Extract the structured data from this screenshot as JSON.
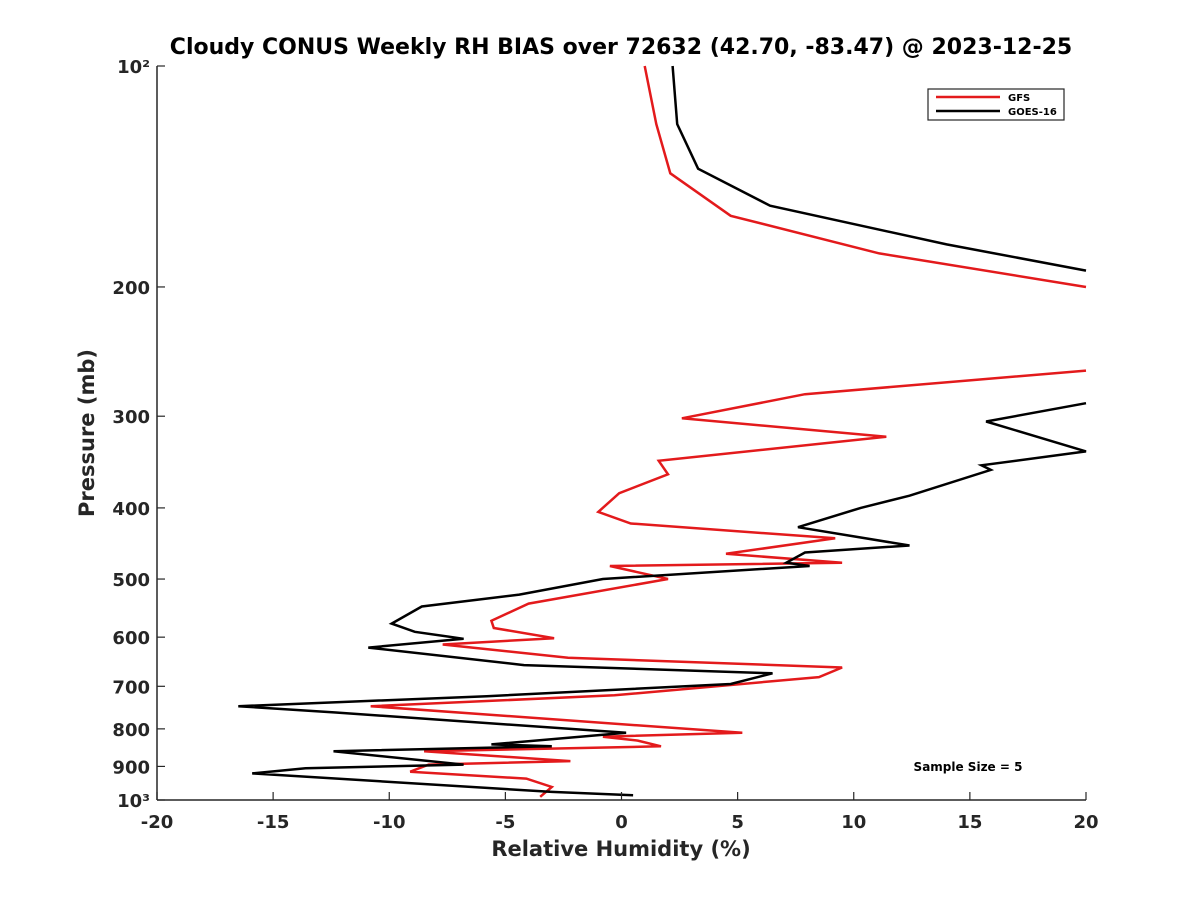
{
  "chart_data": {
    "type": "line",
    "title": "Cloudy CONUS Weekly RH BIAS over 72632 (42.70, -83.47) @ 2023-12-25",
    "xlabel": "Relative Humidity (%)",
    "ylabel": "Pressure (mb)",
    "xlim": [
      -20,
      20
    ],
    "ylim": [
      100,
      1000
    ],
    "y_scale": "log",
    "y_reversed": true,
    "x_ticks": [
      -20,
      -15,
      -10,
      -5,
      0,
      5,
      10,
      15,
      20
    ],
    "x_tick_labels": [
      "-20",
      "-15",
      "-10",
      "-5",
      "0",
      "5",
      "10",
      "15",
      "20"
    ],
    "y_ticks": [
      100,
      200,
      300,
      400,
      500,
      600,
      700,
      800,
      900,
      1000
    ],
    "y_tick_labels": [
      "10²",
      "200",
      "300",
      "400",
      "500",
      "600",
      "700",
      "800",
      "900",
      "10³"
    ],
    "grid": false,
    "legend_position": "top-right",
    "annotation": "Sample Size = 5",
    "series": [
      {
        "name": "GFS",
        "color": "#e31a1c",
        "points": [
          [
            -3.5,
            990
          ],
          [
            -3.0,
            960
          ],
          [
            -4.1,
            935
          ],
          [
            -9.1,
            915
          ],
          [
            -8.3,
            895
          ],
          [
            -2.2,
            885
          ],
          [
            -8.5,
            858
          ],
          [
            1.7,
            845
          ],
          [
            0.7,
            830
          ],
          [
            -0.8,
            820
          ],
          [
            5.2,
            810
          ],
          [
            -10.8,
            745
          ],
          [
            -0.3,
            720
          ],
          [
            8.5,
            680
          ],
          [
            9.5,
            660
          ],
          [
            -2.3,
            640
          ],
          [
            -7.7,
            614
          ],
          [
            -2.9,
            602
          ],
          [
            -5.5,
            583
          ],
          [
            -5.6,
            570
          ],
          [
            -4.0,
            540
          ],
          [
            2.0,
            500
          ],
          [
            -0.5,
            480
          ],
          [
            9.5,
            475
          ],
          [
            4.5,
            462
          ],
          [
            9.2,
            440
          ],
          [
            0.4,
            420
          ],
          [
            -1.0,
            405
          ],
          [
            -0.1,
            382
          ],
          [
            2.0,
            360
          ],
          [
            1.6,
            345
          ],
          [
            11.4,
            320
          ],
          [
            2.6,
            302
          ],
          [
            7.9,
            280
          ],
          [
            20.0,
            260
          ]
        ]
      },
      {
        "name": "GOES-16",
        "color": "#000000",
        "points": [
          [
            0.5,
            985
          ],
          [
            -3.0,
            975
          ],
          [
            -15.9,
            920
          ],
          [
            -13.6,
            905
          ],
          [
            -6.8,
            895
          ],
          [
            -12.4,
            858
          ],
          [
            -3.0,
            845
          ],
          [
            -5.6,
            840
          ],
          [
            0.2,
            810
          ],
          [
            -12.3,
            760
          ],
          [
            -16.5,
            745
          ],
          [
            -5.8,
            722
          ],
          [
            4.7,
            695
          ],
          [
            6.5,
            672
          ],
          [
            -4.2,
            655
          ],
          [
            -10.9,
            620
          ],
          [
            -6.8,
            603
          ],
          [
            -8.9,
            590
          ],
          [
            -9.9,
            575
          ],
          [
            -8.6,
            545
          ],
          [
            -4.4,
            525
          ],
          [
            -0.8,
            500
          ],
          [
            8.1,
            480
          ],
          [
            7.1,
            475
          ],
          [
            7.9,
            460
          ],
          [
            12.4,
            450
          ],
          [
            7.6,
            425
          ],
          [
            10.3,
            400
          ],
          [
            12.4,
            385
          ],
          [
            15.9,
            355
          ],
          [
            15.5,
            350
          ],
          [
            20.0,
            335
          ],
          [
            15.7,
            305
          ],
          [
            20.0,
            288
          ]
        ]
      },
      {
        "name": "GFS",
        "color": "#e31a1c",
        "points": [
          [
            20.0,
            200
          ],
          [
            11.1,
            180
          ],
          [
            4.7,
            160
          ],
          [
            2.1,
            140
          ],
          [
            1.5,
            120
          ],
          [
            1.0,
            100
          ]
        ]
      },
      {
        "name": "GOES-16",
        "color": "#000000",
        "points": [
          [
            20.0,
            190
          ],
          [
            14.0,
            175
          ],
          [
            6.4,
            155
          ],
          [
            3.3,
            138
          ],
          [
            2.4,
            120
          ],
          [
            2.2,
            100
          ]
        ]
      }
    ],
    "legend": [
      {
        "label": "GFS",
        "color": "#e31a1c"
      },
      {
        "label": "GOES-16",
        "color": "#000000"
      }
    ]
  }
}
